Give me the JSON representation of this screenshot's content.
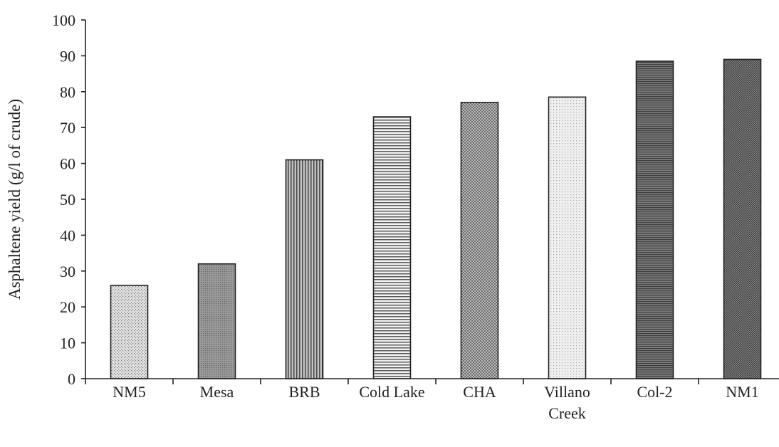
{
  "chart_data": {
    "type": "bar",
    "title": "",
    "xlabel": "",
    "ylabel": "Asphaltene yield (g/l of crude)",
    "categories": [
      "NM5",
      "Mesa",
      "BRB",
      "Cold Lake",
      "CHA",
      "Villano Creek",
      "Col-2",
      "NM1"
    ],
    "category_label_lines": [
      [
        "NM5"
      ],
      [
        "Mesa"
      ],
      [
        "BRB"
      ],
      [
        "Cold Lake"
      ],
      [
        "CHA"
      ],
      [
        "Villano",
        "Creek"
      ],
      [
        "Col-2"
      ],
      [
        "NM1"
      ]
    ],
    "values": [
      26,
      32,
      61,
      73,
      77,
      78.5,
      88.5,
      89
    ],
    "ylim": [
      0,
      100
    ],
    "yticks": [
      0,
      10,
      20,
      30,
      40,
      50,
      60,
      70,
      80,
      90,
      100
    ],
    "grid": false,
    "legend": "none",
    "bar_fills": [
      "fine-dots",
      "dense-dots",
      "vertical-lines",
      "horizontal-lines",
      "checker",
      "sparse-dots",
      "dark-horizontal",
      "dark-checker"
    ]
  }
}
